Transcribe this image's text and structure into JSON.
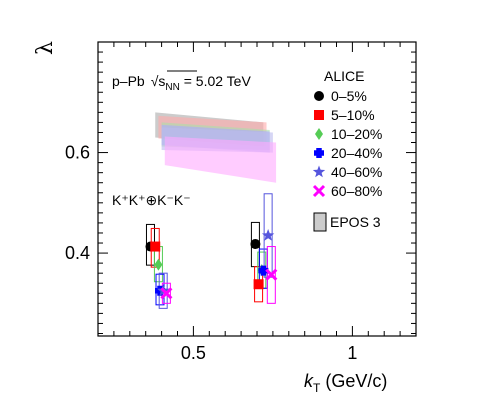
{
  "chart_data": {
    "type": "scatter",
    "xlabel": "k",
    "xlabel_sub": "T",
    "xlabel_unit": " (GeV/c)",
    "ylabel": "λ",
    "xlim": [
      0.2,
      1.2
    ],
    "ylim": [
      0.235,
      0.82
    ],
    "xticks": [
      {
        "value": 0.5,
        "label": "0.5"
      },
      {
        "value": 1.0,
        "label": "1"
      }
    ],
    "yticks": [
      {
        "value": 0.4,
        "label": "0.4"
      },
      {
        "value": 0.6,
        "label": "0.6"
      }
    ],
    "annotations": {
      "system": "p–Pb",
      "energy": "√s",
      "energy_sub": "NN",
      "energy_value": " = 5.02 TeV",
      "pair": "K⁺K⁺⊕K⁻K⁻"
    },
    "legend_title": "ALICE",
    "legend_placement": "top-right",
    "series": [
      {
        "name": "0–5%",
        "color": "#000000",
        "marker": "circle",
        "x": [
          0.365,
          0.695
        ],
        "y": [
          0.413,
          0.418
        ],
        "sys_low": [
          0.376,
          0.373
        ],
        "sys_high": [
          0.457,
          0.461
        ]
      },
      {
        "name": "5–10%",
        "color": "#ff0000",
        "marker": "square",
        "x": [
          0.38,
          0.705
        ],
        "y": [
          0.413,
          0.338
        ],
        "sys_low": [
          0.372,
          0.303
        ],
        "sys_high": [
          0.449,
          0.373
        ]
      },
      {
        "name": "10–20%",
        "color": "#55cc55",
        "marker": "diamond",
        "x": [
          0.39,
          0.715
        ],
        "y": [
          0.377,
          0.366
        ],
        "sys_low": [
          0.343,
          0.33
        ],
        "sys_high": [
          0.413,
          0.402
        ]
      },
      {
        "name": "20–40%",
        "color": "#0000ff",
        "marker": "cross",
        "x": [
          0.395,
          0.72
        ],
        "y": [
          0.325,
          0.365
        ],
        "sys_low": [
          0.297,
          0.33
        ],
        "sys_high": [
          0.358,
          0.408
        ]
      },
      {
        "name": "40–60%",
        "color": "#5555dd",
        "marker": "star",
        "x": [
          0.405,
          0.735
        ],
        "y": [
          0.325,
          0.435
        ],
        "sys_low": [
          0.29,
          0.352
        ],
        "sys_high": [
          0.36,
          0.518
        ]
      },
      {
        "name": "60–80%",
        "color": "#ff00ff",
        "marker": "x-cross",
        "x": [
          0.415,
          0.745
        ],
        "y": [
          0.32,
          0.357
        ],
        "sys_low": [
          0.3,
          0.3
        ],
        "sys_high": [
          0.34,
          0.413
        ]
      }
    ],
    "model": {
      "name": "EPOS 3",
      "bands": [
        {
          "color": "#aaaaaa",
          "x0": 0.38,
          "x1": 0.72,
          "y0_top": 0.68,
          "y0_bot": 0.63,
          "y1_top": 0.66,
          "y1_bot": 0.612
        },
        {
          "color": "#ffaaaa",
          "x0": 0.39,
          "x1": 0.73,
          "y0_top": 0.673,
          "y0_bot": 0.628,
          "y1_top": 0.66,
          "y1_bot": 0.612
        },
        {
          "color": "#aaddaa",
          "x0": 0.4,
          "x1": 0.74,
          "y0_top": 0.66,
          "y0_bot": 0.612,
          "y1_top": 0.645,
          "y1_bot": 0.605
        },
        {
          "color": "#aaaaff",
          "x0": 0.4,
          "x1": 0.74,
          "y0_top": 0.655,
          "y0_bot": 0.615,
          "y1_top": 0.642,
          "y1_bot": 0.6
        },
        {
          "color": "#bbbbee",
          "x0": 0.4,
          "x1": 0.75,
          "y0_top": 0.65,
          "y0_bot": 0.605,
          "y1_top": 0.64,
          "y1_bot": 0.6
        },
        {
          "color": "#ffaaff",
          "x0": 0.41,
          "x1": 0.76,
          "y0_top": 0.632,
          "y0_bot": 0.575,
          "y1_top": 0.62,
          "y1_bot": 0.54
        }
      ]
    }
  }
}
